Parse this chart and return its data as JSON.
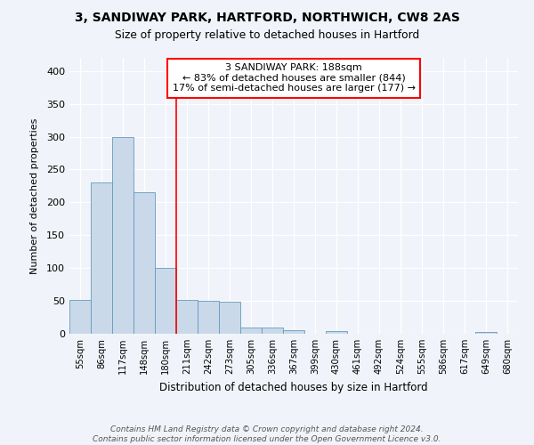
{
  "title1": "3, SANDIWAY PARK, HARTFORD, NORTHWICH, CW8 2AS",
  "title2": "Size of property relative to detached houses in Hartford",
  "xlabel": "Distribution of detached houses by size in Hartford",
  "ylabel": "Number of detached properties",
  "categories": [
    "55sqm",
    "86sqm",
    "117sqm",
    "148sqm",
    "180sqm",
    "211sqm",
    "242sqm",
    "273sqm",
    "305sqm",
    "336sqm",
    "367sqm",
    "399sqm",
    "430sqm",
    "461sqm",
    "492sqm",
    "524sqm",
    "555sqm",
    "586sqm",
    "617sqm",
    "649sqm",
    "680sqm"
  ],
  "values": [
    52,
    230,
    300,
    215,
    100,
    52,
    50,
    49,
    9,
    9,
    6,
    0,
    4,
    0,
    0,
    0,
    0,
    0,
    0,
    3,
    0
  ],
  "bar_color": "#c9d9ea",
  "bar_edge_color": "#6699bb",
  "bg_color": "#f0f4fa",
  "grid_color": "#ffffff",
  "vline_x": 4.5,
  "vline_color": "red",
  "annotation_text": "3 SANDIWAY PARK: 188sqm\n← 83% of detached houses are smaller (844)\n17% of semi-detached houses are larger (177) →",
  "annotation_box_color": "white",
  "annotation_box_edge": "red",
  "footer": "Contains HM Land Registry data © Crown copyright and database right 2024.\nContains public sector information licensed under the Open Government Licence v3.0.",
  "ylim": [
    0,
    420
  ],
  "yticks": [
    0,
    50,
    100,
    150,
    200,
    250,
    300,
    350,
    400
  ]
}
